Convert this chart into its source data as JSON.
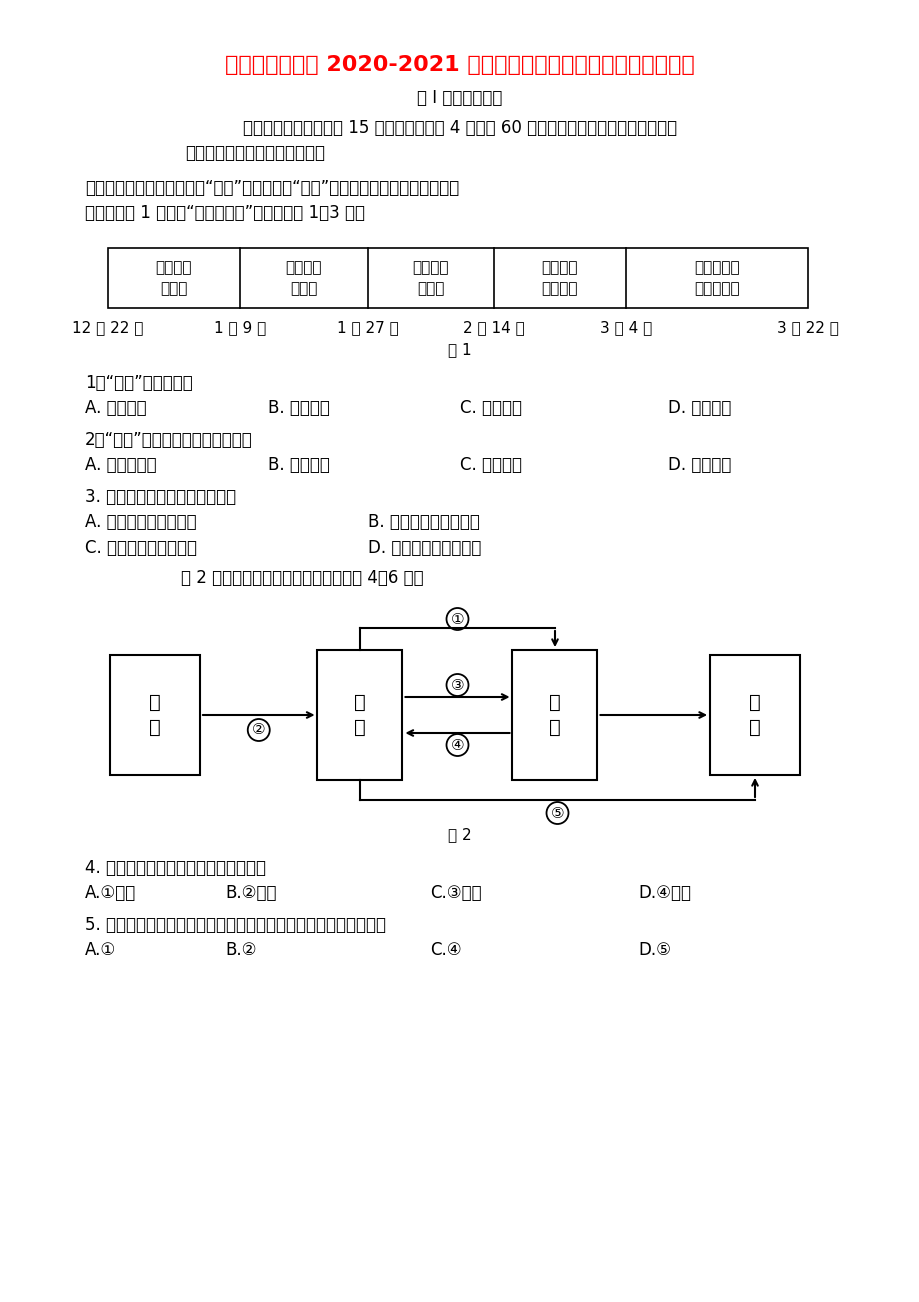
{
  "title": "四川省泸县四中 2020-2021 学年高一地理上学期期末模拟考试试题",
  "title_color": "#FF0000",
  "bg_color": "#FFFFFF",
  "text_color": "#000000",
  "section_header": "第 I 卷（选择题）",
  "intro1": "一、选择题：本部分共 15 个小题，每小题 4 分，共 60 分。在每小题给出的四个选项中，",
  "intro2": "只有一项是最符合题目要求的。",
  "para1": "数九又称冬九九，每九天算“一九”，一直数到“九九”共八十一天。是我国汉族的民",
  "para2": "间节气。图 1 是我国“九九消寒歌”，据此回答 1～3 题。",
  "timeline_labels_top": [
    "一九二九\n不出手",
    "三九四九\n冰上走",
    "五九六九\n看杨柳",
    "七九河开\n八九雁来",
    "九九加一九\n耕牛遍地走"
  ],
  "timeline_dates": [
    "12 月 22 日",
    "1 月 9 日",
    "1 月 27 日",
    "2 月 14 日",
    "3 月 4 日",
    "3 月 22 日"
  ],
  "fig1_label": "图 1",
  "q1": "1．“数九”中最冷的是",
  "q1a": "A. 一九二九",
  "q1b": "B. 三九四九",
  "q1c": "C. 五九六九",
  "q1d": "D. 七九八九",
  "q2": "2．“数九”节气最接近我国的地区是",
  "q2a": "A. 西南方地区",
  "q2b": "B. 西北地区",
  "q2c": "C. 东北地区",
  "q2d": "D. 华北地区",
  "q3": "3. 数九期间，泸州的昼夜状况是",
  "q3a": "A. 昼长夜短，昼在变长",
  "q3b": "B. 昼长夜短，昼在变短",
  "q3c": "C. 昼短夜长，昼在变长",
  "q3d": "D. 昼短夜长，昼在变短",
  "para3": "    图 2 为大气受热过程示意图，读图回答 4～6 题。",
  "fig2_label": "图 2",
  "q4": "4. 当前全球气候变暖的直接原因是图中",
  "q4a": "A.①增强",
  "q4b": "B.②减弱",
  "q4c": "C.③减弱",
  "q4d": "D.④增强",
  "q5": "5. 大规模的火山爆发可能造成地表温度下降，主要与图中有关的是",
  "q5a": "A.①",
  "q5b": "B.②",
  "q5c": "C.④",
  "q5d": "D.⑤"
}
